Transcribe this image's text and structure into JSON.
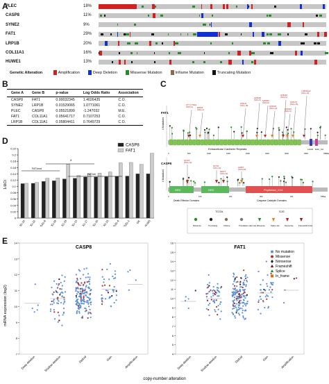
{
  "panels": {
    "a": "A",
    "b": "B",
    "c": "C",
    "d": "D",
    "e": "E"
  },
  "oncoprint": {
    "genes": [
      {
        "name": "PLEC",
        "pct": "18%"
      },
      {
        "name": "CASP8",
        "pct": "11%"
      },
      {
        "name": "SYNE2",
        "pct": "9%"
      },
      {
        "name": "FAT1",
        "pct": "29%"
      },
      {
        "name": "LRP1B",
        "pct": "20%"
      },
      {
        "name": "COL11A1",
        "pct": "16%"
      },
      {
        "name": "HUWE1",
        "pct": "13%"
      }
    ],
    "legend_title": "Genetic Alteration",
    "legend": [
      {
        "label": "Amplification",
        "color": "#d22020"
      },
      {
        "label": "Deep Deletion",
        "color": "#1030d8"
      },
      {
        "label": "Missense Mutation",
        "color": "#2a8a2a"
      },
      {
        "label": "Inframe Mutation",
        "color": "#8a6a4a"
      },
      {
        "label": "Truncating Mutation",
        "color": "#111111"
      }
    ]
  },
  "table": {
    "headers": [
      "Gene A",
      "Gene B",
      "p-value",
      "Log Odds Ratio",
      "Association"
    ],
    "rows": [
      [
        "CASP8",
        "FAT1",
        "0.00032345",
        "1.4026435",
        "C.O."
      ],
      [
        "SYNE2",
        "LRP1B",
        "0.01529065",
        "1.0771061",
        "C.O."
      ],
      [
        "PLEC",
        "CASP8",
        "0.05521899",
        "-1.247032",
        "M.E."
      ],
      [
        "FAT1",
        "COL11A1",
        "0.05641717",
        "0.7107253",
        "C.O."
      ],
      [
        "LRP1B",
        "COL11A1",
        "0.05804411",
        "0.7649729",
        "C.O."
      ]
    ]
  },
  "lollipop": {
    "fat1_label": "FAT1",
    "fat1_ylabel": "# Mutations",
    "fat1_annots": [
      "K77_K79del (SJG-6)",
      "E833X (SJG-4)",
      "P2014L (SJG-18)",
      "Q2529X (SJG-6)",
      "S2605X (SJG-8)",
      "Q3003X (SJG-13)",
      "Q3526X (SJG-5)",
      "Q3517X (SJG-16)",
      "c.9816dupl (SJG-13)",
      "Q2466X (SJG-5)"
    ],
    "fat1_domain_text": "Extracellular Cadherin Repeats",
    "fat1_small_domains": [
      "LAGD",
      "EGF_CA"
    ],
    "fat1_xticks": [
      "0",
      "500",
      "1000",
      "1500",
      "2000",
      "2500",
      "3000",
      "3500",
      "4588aa"
    ],
    "casp8_label": "CASP8",
    "casp8_ylabel": "# Mutations",
    "casp8_annots": [
      "Q110X (SJG-13)",
      "S174X (SJG-13)",
      "R207T (SJG-14)",
      "H255T (SJG-20)"
    ],
    "casp8_domains": [
      "DED",
      "DED",
      "Peptidase_C14"
    ],
    "casp8_domain_labels": [
      "Death Effector Domains",
      "Caspase Catalytic Domains"
    ],
    "casp8_xticks": [
      "0",
      "100",
      "200",
      "300",
      "400",
      "538aa"
    ],
    "legend_groups": [
      "TCGA",
      "SJG"
    ],
    "legend_tcga": [
      "Missense",
      "Truncating",
      "Inframe",
      "Translation start site"
    ],
    "legend_sjg": [
      "Missense",
      "Splice site",
      "Nonsense",
      "Frameshift indel"
    ]
  },
  "chart_data": [
    {
      "type": "bar",
      "title": "",
      "ylabel": "1/ΔCt",
      "ylim": [
        0,
        0.22
      ],
      "yticks": [
        "0",
        "0.02",
        "0.04",
        "0.06",
        "0.08",
        "0.1",
        "0.12",
        "0.14",
        "0.16",
        "0.18",
        "0.2",
        "0.22"
      ],
      "categories": [
        "SJG-10",
        "SJG-22",
        "SJG-6",
        "SJG-18",
        "SJG-19",
        "SJG-13",
        "SJG-17",
        "SJG-33",
        "SJG-15",
        "SJG-4",
        "SJG-1",
        "GK",
        "OR-005"
      ],
      "series": [
        {
          "name": "CASP8",
          "values": [
            0.109,
            0.11,
            0.116,
            0.118,
            0.124,
            0.126,
            0.13,
            0.13,
            0.131,
            0.132,
            0.133,
            0.14,
            0.14
          ]
        },
        {
          "name": "FAT1",
          "values": [
            0.11,
            0.113,
            0.126,
            0.127,
            0.17,
            0.135,
            0.14,
            0.142,
            0.146,
            0.175,
            0.176,
            0.17,
            0.205
          ]
        }
      ],
      "group_labels": [
        "FAT1mut",
        "FAT1wt",
        "CASP8mut",
        "CASP8/FAT1wt"
      ],
      "significance": "*"
    },
    {
      "type": "scatter",
      "title": "CASP8",
      "xlabel": "",
      "ylabel": "mRNA expression (log2)",
      "categories": [
        "Deep deletion",
        "Shallow deletion",
        "Diploid",
        "Gain",
        "Amplification"
      ],
      "ylim": [
        7,
        14
      ],
      "yticks": [
        "7",
        "8",
        "9",
        "10",
        "11",
        "12",
        "13",
        "14"
      ]
    },
    {
      "type": "scatter",
      "title": "FAT1",
      "xlabel": "copy-number alteration",
      "categories": [
        "Deep deletion",
        "Shallow deletion",
        "Diploid",
        "Gain",
        "Amplification"
      ],
      "ylim": [
        4,
        16
      ],
      "yticks": [
        "4",
        "5",
        "6",
        "7",
        "8",
        "9",
        "10",
        "11",
        "12",
        "13",
        "14",
        "15",
        "16"
      ],
      "legend": [
        "No mutation",
        "Missense",
        "Nonsense",
        "Frameshift",
        "Splice",
        "In_frame"
      ]
    }
  ],
  "legend_e": [
    {
      "label": "No mutation",
      "color": "#5b8fd8",
      "shape": "circle"
    },
    {
      "label": "Missense",
      "color": "#b03030",
      "shape": "circle"
    },
    {
      "label": "Nonsense",
      "color": "#222222",
      "shape": "diamond"
    },
    {
      "label": "Frameshift",
      "color": "#6a1010",
      "shape": "triangle"
    },
    {
      "label": "Splice",
      "color": "#2a8a2a",
      "shape": "triangle"
    },
    {
      "label": "In_frame",
      "color": "#d07010",
      "shape": "square"
    }
  ],
  "xlabel_e": "copy-number alteration"
}
